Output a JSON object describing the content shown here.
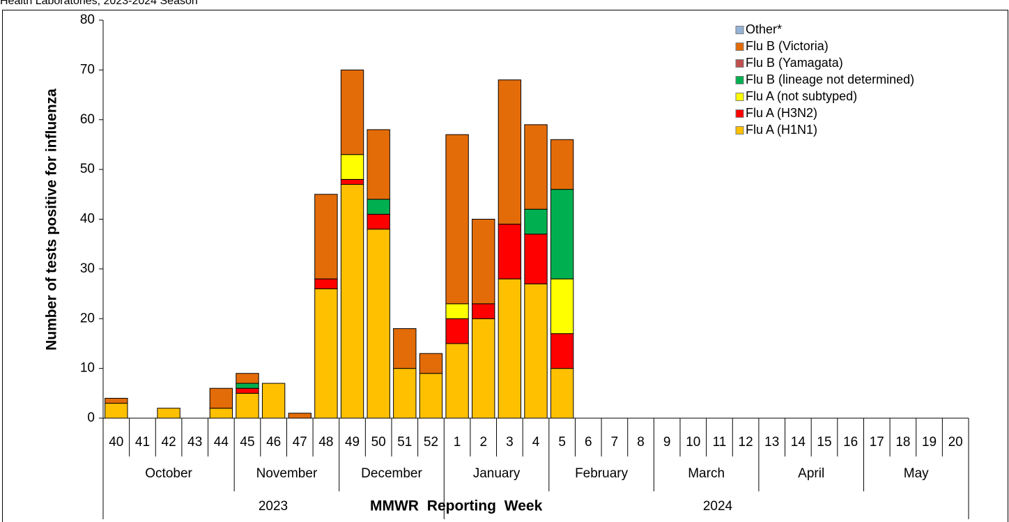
{
  "chart_data": {
    "type": "bar",
    "stacked": true,
    "title": "Health Laboratories, 2023-2024 Season",
    "ylabel": "Number of tests positive for influenza",
    "xlabel": "MMWR Reporting Week",
    "categories": [
      "40",
      "41",
      "42",
      "43",
      "44",
      "45",
      "46",
      "47",
      "48",
      "49",
      "50",
      "51",
      "52",
      "1",
      "2",
      "3",
      "4",
      "5",
      "6",
      "7",
      "8",
      "9",
      "10",
      "11",
      "12",
      "13",
      "14",
      "15",
      "16",
      "17",
      "18",
      "19",
      "20"
    ],
    "months": [
      "October",
      "November",
      "December",
      "January",
      "February",
      "March",
      "April",
      "May"
    ],
    "years": [
      "2023",
      "2024"
    ],
    "series": [
      {
        "name": "Flu A (H1N1)",
        "color": "#ffc000",
        "values": [
          3,
          0,
          2,
          0,
          2,
          5,
          7,
          0,
          26,
          47,
          38,
          10,
          9,
          15,
          20,
          28,
          27,
          10,
          0,
          0,
          0,
          0,
          0,
          0,
          0,
          0,
          0,
          0,
          0,
          0,
          0,
          0,
          0
        ]
      },
      {
        "name": "Flu A (H3N2)",
        "color": "#ff0000",
        "values": [
          0,
          0,
          0,
          0,
          0,
          1,
          0,
          0,
          2,
          1,
          3,
          0,
          0,
          5,
          3,
          11,
          10,
          7,
          0,
          0,
          0,
          0,
          0,
          0,
          0,
          0,
          0,
          0,
          0,
          0,
          0,
          0,
          0
        ]
      },
      {
        "name": "Flu A (not subtyped)",
        "color": "#ffff00",
        "values": [
          0,
          0,
          0,
          0,
          0,
          0,
          0,
          0,
          0,
          5,
          0,
          0,
          0,
          3,
          0,
          0,
          0,
          11,
          0,
          0,
          0,
          0,
          0,
          0,
          0,
          0,
          0,
          0,
          0,
          0,
          0,
          0,
          0
        ]
      },
      {
        "name": "Flu B (lineage not determined)",
        "color": "#00b050",
        "values": [
          0,
          0,
          0,
          0,
          0,
          1,
          0,
          0,
          0,
          0,
          3,
          0,
          0,
          0,
          0,
          0,
          5,
          18,
          0,
          0,
          0,
          0,
          0,
          0,
          0,
          0,
          0,
          0,
          0,
          0,
          0,
          0,
          0
        ]
      },
      {
        "name": "Flu B (Yamagata)",
        "color": "#c0504d",
        "values": [
          0,
          0,
          0,
          0,
          0,
          0,
          0,
          0,
          0,
          0,
          0,
          0,
          0,
          0,
          0,
          0,
          0,
          0,
          0,
          0,
          0,
          0,
          0,
          0,
          0,
          0,
          0,
          0,
          0,
          0,
          0,
          0,
          0
        ]
      },
      {
        "name": "Flu B (Victoria)",
        "color": "#e36c09",
        "values": [
          1,
          0,
          0,
          0,
          4,
          2,
          0,
          1,
          17,
          17,
          14,
          8,
          4,
          34,
          17,
          29,
          17,
          10,
          0,
          0,
          0,
          0,
          0,
          0,
          0,
          0,
          0,
          0,
          0,
          0,
          0,
          0,
          0
        ]
      },
      {
        "name": "Other*",
        "color": "#95b3d7",
        "values": [
          0,
          0,
          0,
          0,
          0,
          0,
          0,
          0,
          0,
          0,
          0,
          0,
          0,
          0,
          0,
          0,
          0,
          0,
          0,
          0,
          0,
          0,
          0,
          0,
          0,
          0,
          0,
          0,
          0,
          0,
          0,
          0,
          0
        ]
      }
    ],
    "ylim": [
      0,
      80
    ],
    "yticks": [
      0,
      10,
      20,
      30,
      40,
      50,
      60,
      70,
      80
    ]
  }
}
